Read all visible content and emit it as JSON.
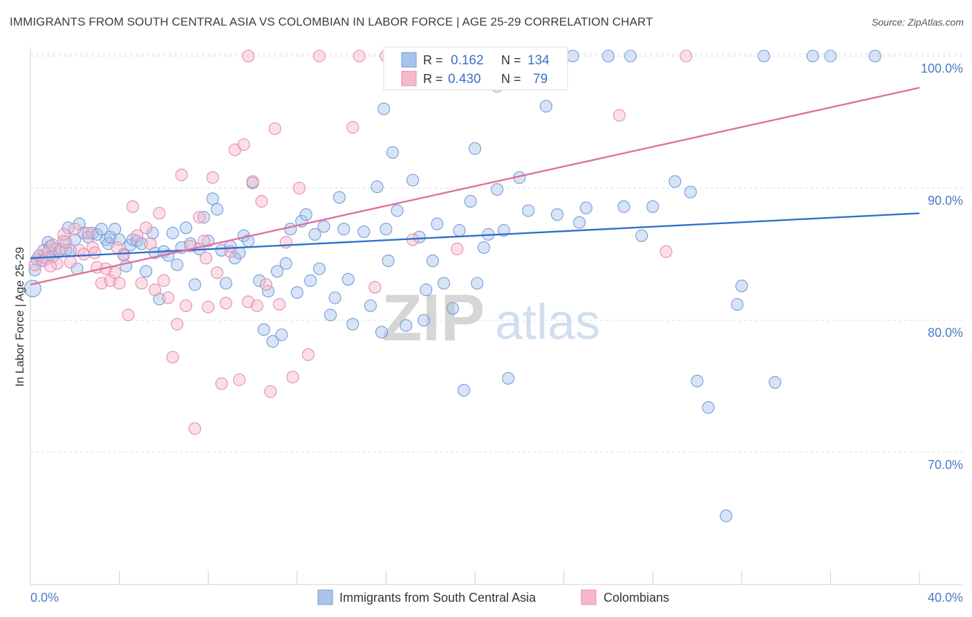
{
  "title": "IMMIGRANTS FROM SOUTH CENTRAL ASIA VS COLOMBIAN IN LABOR FORCE | AGE 25-29 CORRELATION CHART",
  "source": "Source: ZipAtlas.com",
  "watermark": {
    "zip": "ZIP",
    "atlas": "atlas"
  },
  "legend": {
    "r_label": "R =",
    "n_label": "N =",
    "series": [
      {
        "r": "0.162",
        "n": "134",
        "color": "#a9c4ea",
        "stroke": "#6f9bd8"
      },
      {
        "r": "0.430",
        "n": "79",
        "color": "#f6b8cb",
        "stroke": "#e88aa8"
      }
    ]
  },
  "bottom_legend": [
    "Immigrants from South Central Asia",
    "Colombians"
  ],
  "chart_data": {
    "type": "scatter",
    "title": "IMMIGRANTS FROM SOUTH CENTRAL ASIA VS COLOMBIAN IN LABOR FORCE | AGE 25-29 CORRELATION CHART",
    "xlabel": "",
    "ylabel": "In Labor Force | Age 25-29",
    "xlim": [
      0,
      40
    ],
    "ylim": [
      60,
      101.5
    ],
    "x_tick_labels": [
      "0.0%",
      "40.0%"
    ],
    "y_tick_labels": [
      "70.0%",
      "80.0%",
      "90.0%",
      "100.0%"
    ],
    "y_ticks": [
      70,
      80,
      90,
      100
    ],
    "grid": true,
    "legend_position": "top-center",
    "series": [
      {
        "name": "Immigrants from South Central Asia",
        "color": "#6f9bd8",
        "fill": "#a9c4ea",
        "trend": {
          "x": [
            0,
            40
          ],
          "y": [
            84.7,
            88.1
          ],
          "color": "#2f6fcc"
        },
        "points": [
          [
            0.1,
            82.4
          ],
          [
            0.2,
            83.8
          ],
          [
            0.3,
            84.6
          ],
          [
            0.4,
            84.9
          ],
          [
            0.5,
            84.5
          ],
          [
            0.6,
            85.3
          ],
          [
            0.7,
            84.7
          ],
          [
            0.8,
            85.9
          ],
          [
            0.9,
            85.6
          ],
          [
            1.0,
            84.8
          ],
          [
            1.1,
            85.4
          ],
          [
            1.3,
            85.2
          ],
          [
            1.5,
            86.0
          ],
          [
            1.6,
            85.3
          ],
          [
            1.7,
            87.0
          ],
          [
            1.8,
            85.3
          ],
          [
            2.0,
            86.1
          ],
          [
            2.1,
            83.9
          ],
          [
            2.2,
            87.3
          ],
          [
            2.4,
            86.6
          ],
          [
            2.6,
            86.3
          ],
          [
            2.8,
            86.6
          ],
          [
            3.0,
            86.5
          ],
          [
            3.2,
            86.9
          ],
          [
            3.4,
            86.1
          ],
          [
            3.5,
            85.8
          ],
          [
            3.6,
            86.3
          ],
          [
            3.8,
            86.9
          ],
          [
            4.0,
            86.1
          ],
          [
            4.2,
            85.0
          ],
          [
            4.3,
            84.1
          ],
          [
            4.5,
            85.7
          ],
          [
            4.6,
            86.1
          ],
          [
            4.8,
            86.0
          ],
          [
            5.0,
            85.8
          ],
          [
            5.2,
            83.7
          ],
          [
            5.5,
            86.6
          ],
          [
            5.6,
            85.1
          ],
          [
            5.8,
            81.6
          ],
          [
            6.0,
            85.2
          ],
          [
            6.2,
            84.9
          ],
          [
            6.4,
            86.6
          ],
          [
            6.6,
            84.2
          ],
          [
            6.8,
            85.5
          ],
          [
            7.0,
            87.0
          ],
          [
            7.2,
            85.8
          ],
          [
            7.4,
            82.7
          ],
          [
            7.6,
            85.4
          ],
          [
            7.8,
            87.8
          ],
          [
            8.0,
            86.0
          ],
          [
            8.2,
            89.2
          ],
          [
            8.4,
            88.4
          ],
          [
            8.6,
            85.3
          ],
          [
            8.8,
            82.8
          ],
          [
            9.0,
            85.6
          ],
          [
            9.2,
            84.7
          ],
          [
            9.4,
            85.1
          ],
          [
            9.6,
            86.4
          ],
          [
            9.8,
            86.0
          ],
          [
            10.0,
            90.4
          ],
          [
            10.3,
            83.0
          ],
          [
            10.5,
            79.3
          ],
          [
            10.7,
            82.2
          ],
          [
            10.9,
            78.4
          ],
          [
            11.1,
            83.7
          ],
          [
            11.3,
            78.9
          ],
          [
            11.5,
            84.3
          ],
          [
            11.7,
            86.9
          ],
          [
            12.0,
            82.1
          ],
          [
            12.2,
            87.5
          ],
          [
            12.4,
            88.0
          ],
          [
            12.6,
            83.0
          ],
          [
            12.8,
            86.5
          ],
          [
            13.0,
            83.9
          ],
          [
            13.2,
            87.1
          ],
          [
            13.5,
            80.4
          ],
          [
            13.7,
            81.7
          ],
          [
            13.9,
            89.3
          ],
          [
            14.1,
            86.9
          ],
          [
            14.3,
            83.1
          ],
          [
            14.5,
            79.7
          ],
          [
            15.0,
            86.7
          ],
          [
            15.3,
            81.1
          ],
          [
            15.6,
            90.1
          ],
          [
            15.8,
            79.1
          ],
          [
            16.0,
            86.9
          ],
          [
            16.1,
            84.5
          ],
          [
            16.3,
            92.7
          ],
          [
            16.5,
            88.3
          ],
          [
            16.7,
            100.0
          ],
          [
            16.9,
            79.6
          ],
          [
            17.2,
            90.6
          ],
          [
            17.5,
            86.3
          ],
          [
            17.8,
            82.3
          ],
          [
            18.1,
            84.5
          ],
          [
            18.3,
            87.3
          ],
          [
            18.6,
            82.8
          ],
          [
            19.0,
            80.9
          ],
          [
            19.5,
            74.7
          ],
          [
            19.8,
            89.0
          ],
          [
            20.1,
            82.8
          ],
          [
            20.4,
            85.5
          ],
          [
            20.6,
            86.5
          ],
          [
            21.0,
            89.9
          ],
          [
            21.3,
            86.8
          ],
          [
            21.5,
            75.6
          ],
          [
            22.0,
            90.8
          ],
          [
            22.4,
            88.3
          ],
          [
            23.2,
            96.2
          ],
          [
            23.7,
            88.0
          ],
          [
            24.4,
            100.0
          ],
          [
            24.7,
            87.4
          ],
          [
            25.0,
            88.5
          ],
          [
            26.0,
            100.0
          ],
          [
            26.7,
            88.6
          ],
          [
            27.0,
            100.0
          ],
          [
            27.5,
            86.4
          ],
          [
            28.0,
            88.6
          ],
          [
            29.0,
            90.5
          ],
          [
            29.7,
            89.7
          ],
          [
            30.0,
            75.4
          ],
          [
            30.5,
            73.4
          ],
          [
            31.3,
            65.2
          ],
          [
            31.8,
            81.2
          ],
          [
            32.0,
            82.6
          ],
          [
            33.0,
            100.0
          ],
          [
            33.5,
            75.3
          ],
          [
            35.2,
            100.0
          ],
          [
            36.0,
            100.0
          ],
          [
            38.0,
            100.0
          ],
          [
            15.9,
            96.0
          ],
          [
            17.7,
            80.0
          ],
          [
            20.0,
            93.0
          ],
          [
            19.3,
            86.8
          ]
        ]
      },
      {
        "name": "Colombians",
        "color": "#e88aa8",
        "fill": "#f6b8cb",
        "trend": {
          "x": [
            0,
            40
          ],
          "y": [
            82.7,
            97.6
          ],
          "color": "#e0709a"
        },
        "points": [
          [
            0.2,
            84.2
          ],
          [
            0.4,
            84.9
          ],
          [
            0.6,
            84.5
          ],
          [
            0.8,
            85.2
          ],
          [
            1.0,
            85.7
          ],
          [
            1.2,
            84.3
          ],
          [
            1.4,
            85.4
          ],
          [
            1.6,
            85.9
          ],
          [
            1.8,
            84.4
          ],
          [
            2.0,
            86.9
          ],
          [
            2.2,
            85.3
          ],
          [
            2.4,
            85.0
          ],
          [
            2.6,
            86.6
          ],
          [
            2.8,
            85.5
          ],
          [
            3.0,
            84.0
          ],
          [
            3.2,
            82.8
          ],
          [
            3.4,
            83.9
          ],
          [
            3.6,
            83.0
          ],
          [
            3.8,
            83.6
          ],
          [
            4.0,
            82.8
          ],
          [
            4.2,
            84.9
          ],
          [
            4.4,
            80.4
          ],
          [
            4.6,
            88.6
          ],
          [
            4.8,
            86.4
          ],
          [
            5.0,
            82.8
          ],
          [
            5.2,
            87.0
          ],
          [
            5.4,
            85.8
          ],
          [
            5.6,
            82.3
          ],
          [
            5.8,
            88.1
          ],
          [
            6.0,
            83.0
          ],
          [
            6.2,
            81.7
          ],
          [
            6.4,
            77.2
          ],
          [
            6.6,
            79.7
          ],
          [
            6.8,
            91.0
          ],
          [
            7.0,
            81.1
          ],
          [
            7.2,
            85.6
          ],
          [
            7.4,
            71.8
          ],
          [
            7.6,
            87.8
          ],
          [
            7.8,
            86.0
          ],
          [
            8.0,
            81.0
          ],
          [
            8.2,
            90.8
          ],
          [
            8.4,
            83.6
          ],
          [
            8.6,
            75.2
          ],
          [
            8.8,
            81.3
          ],
          [
            9.0,
            85.2
          ],
          [
            9.2,
            92.9
          ],
          [
            9.4,
            75.5
          ],
          [
            9.6,
            93.3
          ],
          [
            9.8,
            81.4
          ],
          [
            10.0,
            90.5
          ],
          [
            10.2,
            81.1
          ],
          [
            10.4,
            89.0
          ],
          [
            10.6,
            82.7
          ],
          [
            10.8,
            74.6
          ],
          [
            11.0,
            94.5
          ],
          [
            11.2,
            81.2
          ],
          [
            11.5,
            85.9
          ],
          [
            11.8,
            75.7
          ],
          [
            12.1,
            90.0
          ],
          [
            12.5,
            77.4
          ],
          [
            13.0,
            100.0
          ],
          [
            14.5,
            94.6
          ],
          [
            16.0,
            100.0
          ],
          [
            17.2,
            86.1
          ],
          [
            18.0,
            100.0
          ],
          [
            19.2,
            85.4
          ],
          [
            20.1,
            100.0
          ],
          [
            21.0,
            97.7
          ],
          [
            26.5,
            95.5
          ],
          [
            28.6,
            85.2
          ],
          [
            29.5,
            100.0
          ],
          [
            9.8,
            100.0
          ],
          [
            14.8,
            100.0
          ],
          [
            15.5,
            82.5
          ],
          [
            7.9,
            84.7
          ],
          [
            3.9,
            85.5
          ],
          [
            1.5,
            86.5
          ],
          [
            2.9,
            85.1
          ],
          [
            0.9,
            84.1
          ]
        ]
      }
    ]
  }
}
